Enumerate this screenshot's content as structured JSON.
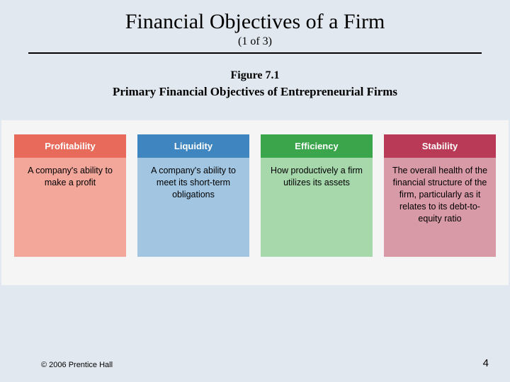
{
  "title": "Financial Objectives of a Firm",
  "subtitle": "(1 of 3)",
  "figure_num": "Figure 7.1",
  "figure_caption": "Primary Financial Objectives of Entrepreneurial Firms",
  "background_color": "#e2e8ef",
  "diagram_bg": "#f5f5f5",
  "cards": [
    {
      "header": "Profitability",
      "body": "A company's ability to make a profit",
      "header_bg": "#e86a5b",
      "body_bg": "#f3a79b"
    },
    {
      "header": "Liquidity",
      "body": "A company's ability to meet its short-term obligations",
      "header_bg": "#3f86c0",
      "body_bg": "#a2c6e2"
    },
    {
      "header": "Efficiency",
      "body": "How productively a firm utilizes its assets",
      "header_bg": "#3aa54b",
      "body_bg": "#a7d8ab"
    },
    {
      "header": "Stability",
      "body": "The overall health of the financial structure of the firm, particularly as it relates to its debt-to-equity ratio",
      "header_bg": "#b83a56",
      "body_bg": "#d99aa8"
    }
  ],
  "copyright": "© 2006 Prentice Hall",
  "page_number": "4"
}
